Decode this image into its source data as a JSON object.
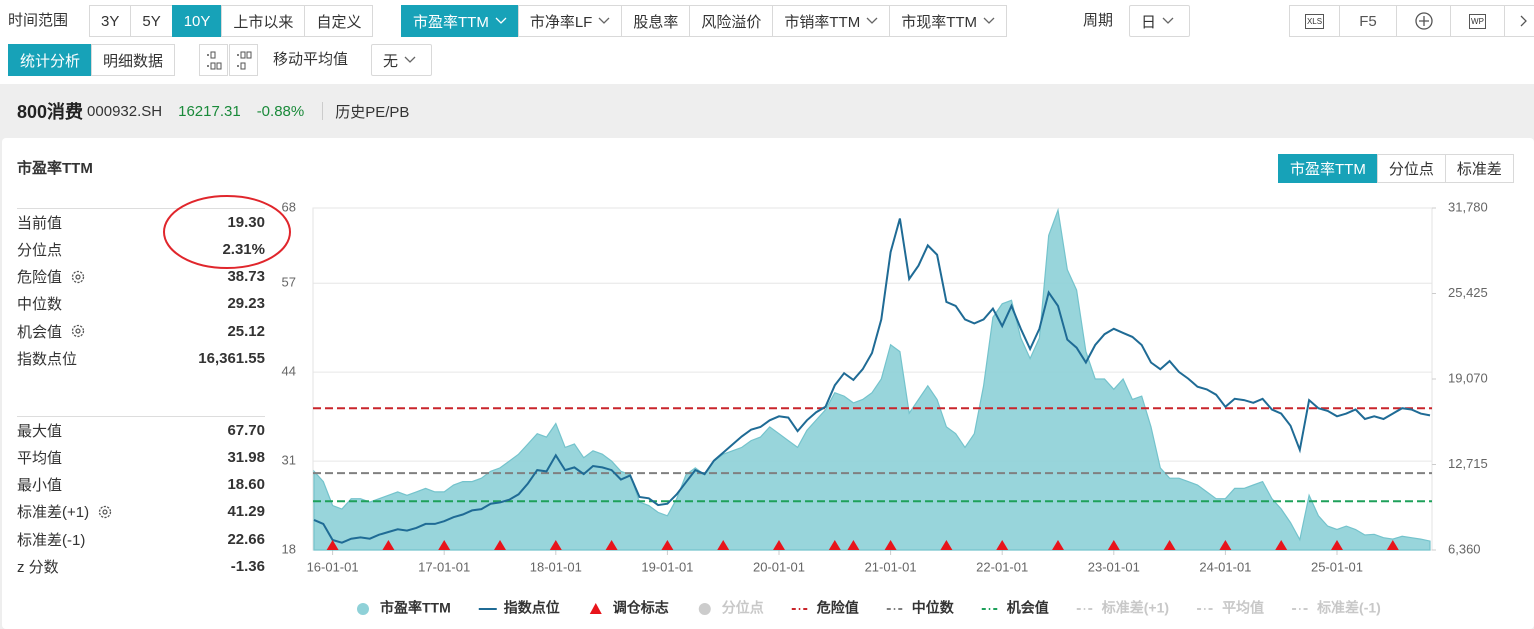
{
  "toolbar": {
    "range_label": "时间范围",
    "ranges": [
      "3Y",
      "5Y",
      "10Y",
      "上市以来",
      "自定义"
    ],
    "active_range": 2,
    "metrics": [
      "市盈率TTM",
      "市净率LF",
      "股息率",
      "风险溢价",
      "市销率TTM",
      "市现率TTM"
    ],
    "metric_dropdowns": [
      true,
      true,
      false,
      false,
      true,
      true
    ],
    "active_metric": 0,
    "period_label": "周期",
    "period": "日",
    "tools": [
      "XLS",
      "F5",
      "WP"
    ]
  },
  "subbar": {
    "views": [
      "统计分析",
      "明细数据"
    ],
    "active_view": 0,
    "ma_label": "移动平均值",
    "ma": "无"
  },
  "header": {
    "name": "800消费",
    "code": "000932.SH",
    "price": "16217.31",
    "change": "-0.88%",
    "mode": "历史PE/PB"
  },
  "panel": {
    "title": "市盈率TTM",
    "tabs": [
      "市盈率TTM",
      "分位点",
      "标准差"
    ],
    "active_tab": 0
  },
  "stats": {
    "groups": [
      [
        {
          "label": "当前值",
          "value": "19.30"
        },
        {
          "label": "分位点",
          "value": "2.31%"
        },
        {
          "label": "危险值",
          "value": "38.73",
          "gear": true
        },
        {
          "label": "中位数",
          "value": "29.23"
        },
        {
          "label": "机会值",
          "value": "25.12",
          "gear": true
        },
        {
          "label": "指数点位",
          "value": "16,361.55"
        }
      ],
      [
        {
          "label": "最大值",
          "value": "67.70"
        },
        {
          "label": "平均值",
          "value": "31.98"
        },
        {
          "label": "最小值",
          "value": "18.60"
        },
        {
          "label": "标准差(+1)",
          "value": "41.29",
          "gear": true
        },
        {
          "label": "标准差(-1)",
          "value": "22.66"
        },
        {
          "label": "z 分数",
          "value": "-1.36"
        }
      ]
    ]
  },
  "chart_data": {
    "type": "line",
    "x": [
      "15-11-01",
      "15-12-01",
      "16-01-01",
      "16-02-01",
      "16-03-01",
      "16-04-01",
      "16-05-01",
      "16-06-01",
      "16-07-01",
      "16-08-01",
      "16-09-01",
      "16-10-01",
      "16-11-01",
      "16-12-01",
      "17-01-01",
      "17-02-01",
      "17-03-01",
      "17-04-01",
      "17-05-01",
      "17-06-01",
      "17-07-01",
      "17-08-01",
      "17-09-01",
      "17-10-01",
      "17-11-01",
      "17-12-01",
      "18-01-01",
      "18-02-01",
      "18-03-01",
      "18-04-01",
      "18-05-01",
      "18-06-01",
      "18-07-01",
      "18-08-01",
      "18-09-01",
      "18-10-01",
      "18-11-01",
      "18-12-01",
      "19-01-01",
      "19-02-01",
      "19-03-01",
      "19-04-01",
      "19-05-01",
      "19-06-01",
      "19-07-01",
      "19-08-01",
      "19-09-01",
      "19-10-01",
      "19-11-01",
      "19-12-01",
      "20-01-01",
      "20-02-01",
      "20-03-01",
      "20-04-01",
      "20-05-01",
      "20-06-01",
      "20-07-01",
      "20-08-01",
      "20-09-01",
      "20-10-01",
      "20-11-01",
      "20-12-01",
      "21-01-01",
      "21-02-01",
      "21-03-01",
      "21-04-01",
      "21-05-01",
      "21-06-01",
      "21-07-01",
      "21-08-01",
      "21-09-01",
      "21-10-01",
      "21-11-01",
      "21-12-01",
      "22-01-01",
      "22-02-01",
      "22-03-01",
      "22-04-01",
      "22-05-01",
      "22-06-01",
      "22-07-01",
      "22-08-01",
      "22-09-01",
      "22-10-01",
      "22-11-01",
      "22-12-01",
      "23-01-01",
      "23-02-01",
      "23-03-01",
      "23-04-01",
      "23-05-01",
      "23-06-01",
      "23-07-01",
      "23-08-01",
      "23-09-01",
      "23-10-01",
      "23-11-01",
      "23-12-01",
      "24-01-01",
      "24-02-01",
      "24-03-01",
      "24-04-01",
      "24-05-01",
      "24-06-01",
      "24-07-01",
      "24-08-01",
      "24-09-01",
      "24-10-01",
      "24-11-01",
      "24-12-01",
      "25-01-01",
      "25-02-01",
      "25-03-01",
      "25-04-01",
      "25-05-01",
      "25-06-01",
      "25-07-01",
      "25-08-01",
      "25-09-01",
      "25-10-01",
      "25-11-01"
    ],
    "series": [
      {
        "name": "市盈率TTM",
        "kind": "area",
        "color": "#8fd1d8",
        "values": [
          29.5,
          28.0,
          24.5,
          24.0,
          25.5,
          25.5,
          25.0,
          25.5,
          26.0,
          26.5,
          26.0,
          26.5,
          27.0,
          26.5,
          26.5,
          27.5,
          28.0,
          28.0,
          28.5,
          29.5,
          30.0,
          31.0,
          32.0,
          33.5,
          35.0,
          34.5,
          36.5,
          33.0,
          33.5,
          31.5,
          32.5,
          32.0,
          31.0,
          29.5,
          29.0,
          25.0,
          24.5,
          23.5,
          23.0,
          25.5,
          29.0,
          30.0,
          29.0,
          31.0,
          32.0,
          32.5,
          33.0,
          34.0,
          34.5,
          36.0,
          35.0,
          34.0,
          33.0,
          35.5,
          37.0,
          38.5,
          41.0,
          40.5,
          39.5,
          40.0,
          41.0,
          43.0,
          48.0,
          47.0,
          38.0,
          40.0,
          42.0,
          40.0,
          36.0,
          35.0,
          33.0,
          35.0,
          42.0,
          52.0,
          54.0,
          54.5,
          49.0,
          46.0,
          49.0,
          64.0,
          67.7,
          59.0,
          56.0,
          47.0,
          43.0,
          43.0,
          41.5,
          43.0,
          40.0,
          40.5,
          36.0,
          30.0,
          28.5,
          28.5,
          28.0,
          27.5,
          26.5,
          25.5,
          25.5,
          27.0,
          27.0,
          27.5,
          28.0,
          25.5,
          24.0,
          22.0,
          19.5,
          26.0,
          23.0,
          21.5,
          21.0,
          21.5,
          21.0,
          20.2,
          20.3,
          19.8,
          19.6,
          20.0,
          19.8,
          19.6,
          19.3
        ]
      },
      {
        "name": "指数点位",
        "kind": "line",
        "axis": "y2",
        "color": "#1f6b95",
        "values": [
          8600,
          8300,
          7100,
          6900,
          7200,
          7300,
          7200,
          7500,
          7700,
          7900,
          7800,
          8000,
          8300,
          8300,
          8500,
          8800,
          9000,
          9300,
          9400,
          9800,
          9900,
          10100,
          10500,
          11300,
          12300,
          12200,
          13400,
          12300,
          12500,
          12000,
          12600,
          12500,
          12300,
          11600,
          11900,
          10300,
          10200,
          9700,
          9800,
          10500,
          11400,
          12300,
          12000,
          13000,
          13600,
          14200,
          14800,
          15300,
          15500,
          16000,
          16300,
          16200,
          15200,
          16000,
          16600,
          17000,
          18600,
          19500,
          19000,
          19800,
          21000,
          23500,
          28500,
          31000,
          26500,
          27500,
          29000,
          28300,
          24800,
          24500,
          23500,
          23200,
          23500,
          24300,
          23000,
          24500,
          22800,
          21300,
          22800,
          25500,
          24500,
          22000,
          21400,
          20300,
          21600,
          22400,
          22800,
          22500,
          22200,
          21600,
          20300,
          19800,
          20400,
          19600,
          19100,
          18500,
          18300,
          17900,
          17000,
          17600,
          17500,
          17300,
          17600,
          16800,
          16500,
          15600,
          13800,
          17500,
          16900,
          16700,
          16300,
          16500,
          16800,
          16100,
          16300,
          16100,
          16500,
          16900,
          16800,
          16500,
          16361.55
        ]
      },
      {
        "name": "调仓标志",
        "kind": "markers",
        "color": "#e8141b",
        "x": [
          "16-01-01",
          "16-07-01",
          "17-01-01",
          "17-07-01",
          "18-01-01",
          "18-07-01",
          "19-01-01",
          "19-07-01",
          "20-01-01",
          "20-07-01",
          "20-09-01",
          "21-01-01",
          "21-07-01",
          "22-01-01",
          "22-07-01",
          "23-01-01",
          "23-07-01",
          "24-01-01",
          "24-07-01",
          "25-01-01",
          "25-07-01"
        ]
      },
      {
        "name": "分位点",
        "kind": "area",
        "color": "#cccccc",
        "visible": false
      },
      {
        "name": "危险值",
        "kind": "hline",
        "color": "#c9252b",
        "value": 38.73
      },
      {
        "name": "中位数",
        "kind": "hline",
        "color": "#808080",
        "value": 29.23
      },
      {
        "name": "机会值",
        "kind": "hline",
        "color": "#1ea05a",
        "value": 25.12
      },
      {
        "name": "标准差(+1)",
        "kind": "hline",
        "color": "#cccccc",
        "visible": false
      },
      {
        "name": "平均值",
        "kind": "hline",
        "color": "#cccccc",
        "visible": false
      },
      {
        "name": "标准差(-1)",
        "kind": "hline",
        "color": "#cccccc",
        "visible": false
      }
    ],
    "ylim": [
      18,
      68
    ],
    "yticks": [
      18,
      31,
      44,
      57,
      68
    ],
    "y2lim": [
      6360,
      31780
    ],
    "y2ticks": [
      {
        "value": 6360,
        "label": "6,360"
      },
      {
        "value": 12715,
        "label": "12,715"
      },
      {
        "value": 19070,
        "label": "19,070"
      },
      {
        "value": 25425,
        "label": "25,425"
      },
      {
        "value": 31780,
        "label": "31,780"
      }
    ],
    "xticks": [
      "16-01-01",
      "17-01-01",
      "18-01-01",
      "19-01-01",
      "20-01-01",
      "21-01-01",
      "22-01-01",
      "23-01-01",
      "24-01-01",
      "25-01-01"
    ],
    "grid": true,
    "legend": "bottom"
  }
}
